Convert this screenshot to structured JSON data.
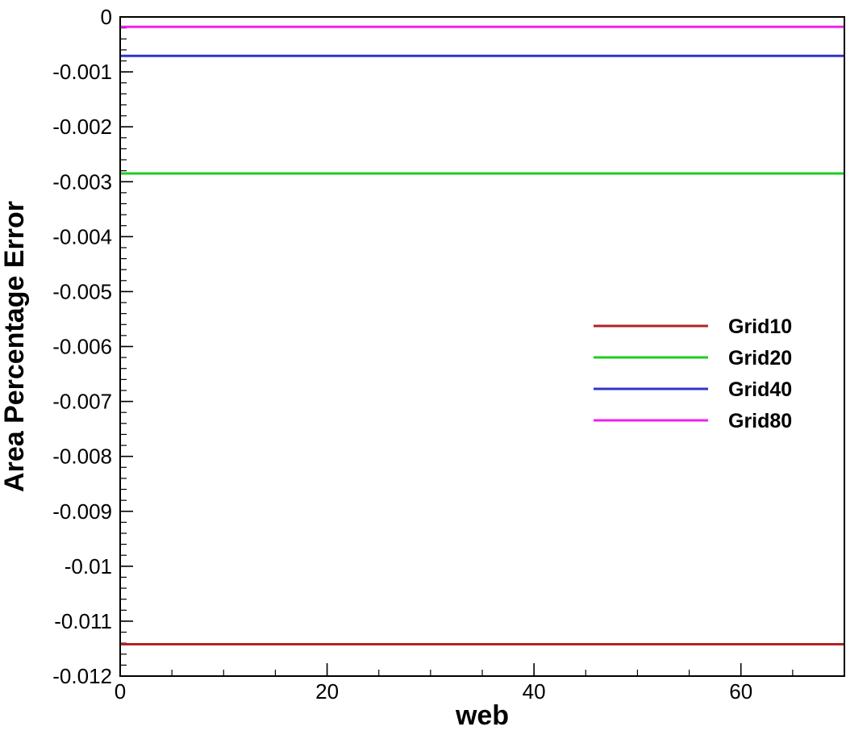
{
  "chart_data": {
    "type": "line",
    "title": "",
    "xlabel": "web",
    "ylabel": "Area Percentage Error",
    "xlim": [
      0,
      70
    ],
    "ylim": [
      -0.012,
      0
    ],
    "x_ticks": [
      0,
      20,
      40,
      60
    ],
    "x_tick_labels": [
      "0",
      "20",
      "40",
      "60"
    ],
    "x_minor_step": 5,
    "y_ticks": [
      0,
      -0.001,
      -0.002,
      -0.003,
      -0.004,
      -0.005,
      -0.006,
      -0.007,
      -0.008,
      -0.009,
      -0.01,
      -0.011,
      -0.012
    ],
    "y_tick_labels": [
      "0",
      "-0.001",
      "-0.002",
      "-0.003",
      "-0.004",
      "-0.005",
      "-0.006",
      "-0.007",
      "-0.008",
      "-0.009",
      "-0.01",
      "-0.011",
      "-0.012"
    ],
    "y_minor_step": 0.0002,
    "grid": false,
    "legend_position": "right",
    "x": [
      0,
      70
    ],
    "series": [
      {
        "name": "Grid10",
        "color": "#b22222",
        "values": [
          -0.01142,
          -0.01142
        ]
      },
      {
        "name": "Grid20",
        "color": "#22cc22",
        "values": [
          -0.00285,
          -0.00285
        ]
      },
      {
        "name": "Grid40",
        "color": "#3333cc",
        "values": [
          -0.00071,
          -0.00071
        ]
      },
      {
        "name": "Grid80",
        "color": "#ee22ee",
        "values": [
          -0.00018,
          -0.00018
        ]
      }
    ]
  }
}
